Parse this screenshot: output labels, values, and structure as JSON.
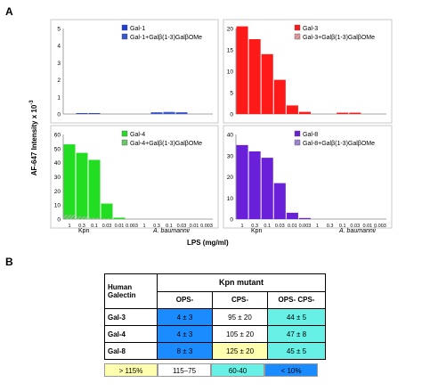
{
  "panels": {
    "a": "A",
    "b": "B"
  },
  "ylabel": "AF-647 Intensity x 10",
  "ylabel_sup": "-3",
  "xlabel": "LPS (mg/ml)",
  "category_labels": {
    "kpn": "Kpn",
    "ab": "A. baumannii"
  },
  "chart_data": [
    {
      "type": "bar",
      "panel": "top-left",
      "x_tick_labels": [],
      "ylim": [
        0,
        5
      ],
      "yticks": [
        0,
        1,
        2,
        3,
        4,
        5
      ],
      "series": [
        {
          "name": "Gal-1",
          "color": "#1f3fd6",
          "values": [
            0,
            0.05,
            0.05,
            0,
            0,
            0,
            0,
            0,
            0.05,
            0.05,
            0,
            0
          ]
        },
        {
          "name": "Gal-1+Galβ(1-3)GalβOMe",
          "color": "#3b5bd9",
          "pattern": "hatch",
          "values": [
            0,
            0,
            0,
            0,
            0,
            0,
            0,
            0.1,
            0.12,
            0.1,
            0,
            0
          ]
        }
      ]
    },
    {
      "type": "bar",
      "panel": "top-right",
      "x_tick_labels": [],
      "ylim": [
        0,
        20
      ],
      "yticks": [
        0,
        5,
        10,
        15,
        20
      ],
      "series": [
        {
          "name": "Gal-3",
          "color": "#ff1a1a",
          "values": [
            20.5,
            17.5,
            14.0,
            8.0,
            2.0,
            0.5,
            0,
            0,
            0.3,
            0.3,
            0,
            0
          ]
        },
        {
          "name": "Gal-3+Galβ(1-3)GalβOMe",
          "color": "#e8a0a0",
          "pattern": "hatch",
          "values": [
            0,
            0,
            0,
            0,
            0,
            0,
            0,
            0,
            0,
            0,
            0,
            0
          ]
        }
      ]
    },
    {
      "type": "bar",
      "panel": "bottom-left",
      "x_tick_labels": [
        "1",
        "0.3",
        "0.1",
        "0.03",
        "0.01",
        "0.003",
        "1",
        "0.3",
        "0.1",
        "0.03",
        "0.01",
        "0.003"
      ],
      "ylim": [
        0,
        60
      ],
      "yticks": [
        0,
        10,
        20,
        30,
        40,
        50,
        60
      ],
      "series": [
        {
          "name": "Gal-4",
          "color": "#22dd22",
          "values": [
            53,
            47,
            42,
            11,
            1,
            0,
            0,
            0,
            0,
            0,
            0,
            0
          ]
        },
        {
          "name": "Gal-4+Galβ(1-3)GalβOMe",
          "color": "#6bd56b",
          "pattern": "hatch",
          "values": [
            3,
            2,
            1,
            0.5,
            0,
            0,
            0,
            0,
            0,
            0,
            0,
            0
          ]
        }
      ]
    },
    {
      "type": "bar",
      "panel": "bottom-right",
      "x_tick_labels": [
        "1",
        "0.3",
        "0.1",
        "0.03",
        "0.01",
        "0.003",
        "1",
        "0.3",
        "0.1",
        "0.03",
        "0.01",
        "0.003"
      ],
      "ylim": [
        0,
        40
      ],
      "yticks": [
        0,
        10,
        20,
        30,
        40
      ],
      "series": [
        {
          "name": "Gal-8",
          "color": "#6a1fd9",
          "values": [
            35,
            32,
            29,
            17,
            3,
            0.5,
            0,
            0,
            0,
            0,
            0,
            0
          ]
        },
        {
          "name": "Gal-8+Galβ(1-3)GalβOMe",
          "color": "#a58be0",
          "pattern": "hatch",
          "values": [
            0,
            0,
            0,
            0,
            0,
            0,
            0,
            0,
            0,
            0,
            0,
            0
          ]
        }
      ]
    }
  ],
  "table": {
    "galectin_header": "Human Galectin",
    "kpn_header": "Kpn mutant",
    "cols": [
      "OPS-",
      "CPS-",
      "OPS- CPS-"
    ],
    "rows": [
      {
        "name": "Gal-3",
        "cells": [
          "4 ± 3",
          "95 ± 20",
          "44 ± 5"
        ],
        "colors": [
          "#1a8cff",
          "#ffffff",
          "#66f0e6"
        ]
      },
      {
        "name": "Gal-4",
        "cells": [
          "4 ± 3",
          "105 ± 20",
          "47 ± 8"
        ],
        "colors": [
          "#1a8cff",
          "#ffffff",
          "#66f0e6"
        ]
      },
      {
        "name": "Gal-8",
        "cells": [
          "8 ± 3",
          "125 ± 20",
          "45 ± 5"
        ],
        "colors": [
          "#1a8cff",
          "#ffffb0",
          "#66f0e6"
        ]
      }
    ]
  },
  "legend": [
    {
      "label": "> 115%",
      "color": "#ffffb0"
    },
    {
      "label": "115–75",
      "color": "#ffffff"
    },
    {
      "label": "60-40",
      "color": "#66f0e6"
    },
    {
      "label": "< 10%",
      "color": "#1a8cff"
    }
  ]
}
